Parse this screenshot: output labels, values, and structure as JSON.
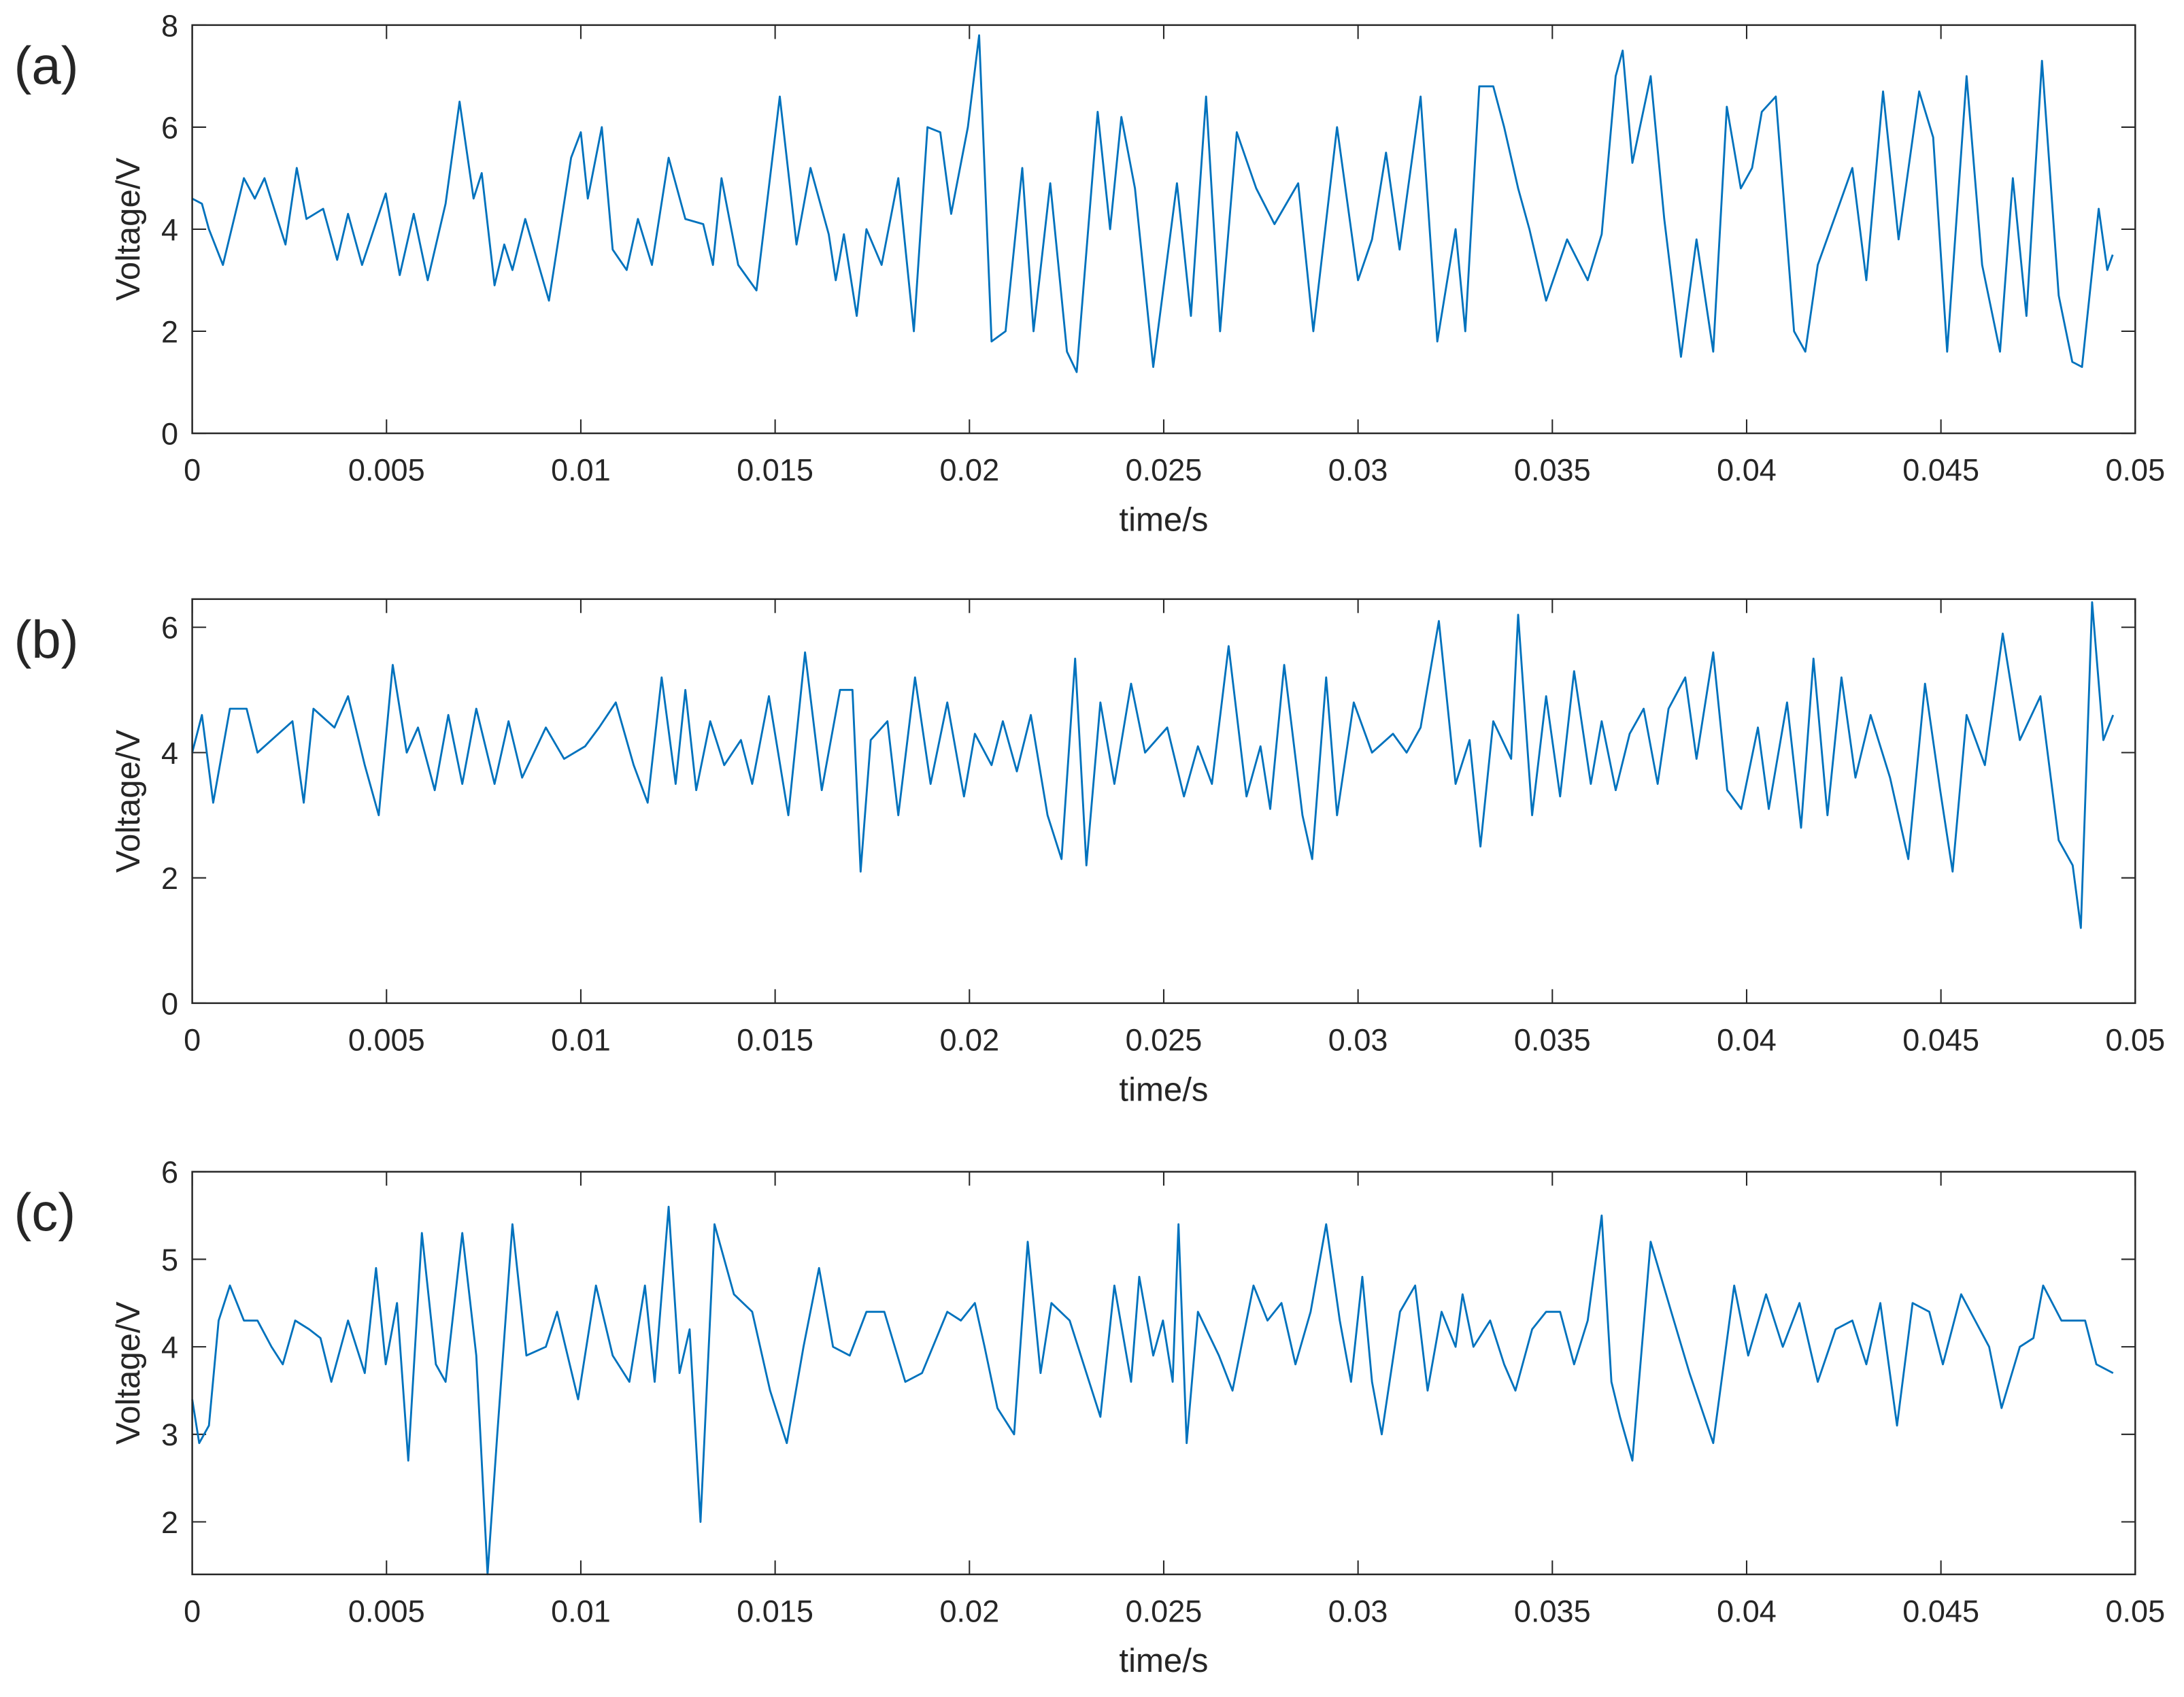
{
  "chart_data": [
    {
      "type": "line",
      "panel_label": "(a)",
      "ylabel": "Voltage/V",
      "xlabel": "time/s",
      "color": "#0072bd",
      "xlim": [
        0,
        0.05
      ],
      "ylim": [
        0,
        8
      ],
      "xticks": [
        0,
        0.005,
        0.01,
        0.015,
        0.02,
        0.025,
        0.03,
        0.035,
        0.04,
        0.045,
        0.05
      ],
      "yticks": [
        0,
        2,
        4,
        6,
        8
      ],
      "x": [
        0,
        0.00025,
        0.00043,
        0.00079,
        0.00133,
        0.00161,
        0.00186,
        0.0024,
        0.00269,
        0.00294,
        0.00337,
        0.00373,
        0.00401,
        0.00437,
        0.00498,
        0.00534,
        0.0057,
        0.00606,
        0.00652,
        0.00688,
        0.00724,
        0.00745,
        0.00778,
        0.00803,
        0.00824,
        0.00857,
        0.00918,
        0.00975,
        0.01,
        0.01018,
        0.01054,
        0.01082,
        0.01118,
        0.01147,
        0.01183,
        0.01226,
        0.01269,
        0.01315,
        0.0134,
        0.01362,
        0.01405,
        0.01452,
        0.01512,
        0.01555,
        0.01591,
        0.01638,
        0.01656,
        0.01677,
        0.0171,
        0.01735,
        0.01774,
        0.01817,
        0.01857,
        0.01892,
        0.01925,
        0.01953,
        0.01996,
        0.02025,
        0.02057,
        0.02093,
        0.02136,
        0.02165,
        0.02208,
        0.02251,
        0.02276,
        0.0233,
        0.02362,
        0.02391,
        0.02426,
        0.02473,
        0.02534,
        0.0257,
        0.02609,
        0.02645,
        0.02688,
        0.02738,
        0.02785,
        0.02846,
        0.02885,
        0.02946,
        0.03,
        0.03036,
        0.03072,
        0.03107,
        0.03161,
        0.03204,
        0.03251,
        0.03276,
        0.03312,
        0.03348,
        0.03376,
        0.03412,
        0.03441,
        0.03484,
        0.03538,
        0.03591,
        0.03627,
        0.03663,
        0.03681,
        0.03706,
        0.03753,
        0.03788,
        0.03831,
        0.03871,
        0.03914,
        0.03949,
        0.03985,
        0.04014,
        0.04039,
        0.04075,
        0.04122,
        0.04151,
        0.04183,
        0.0423,
        0.04272,
        0.04308,
        0.04351,
        0.04391,
        0.04444,
        0.0448,
        0.04516,
        0.04566,
        0.04606,
        0.04652,
        0.04685,
        0.0472,
        0.0476,
        0.04803,
        0.04838,
        0.04863,
        0.04906,
        0.04928,
        0.04942
      ],
      "values": [
        4.6,
        4.5,
        4.0,
        3.3,
        5.0,
        4.6,
        5.0,
        3.7,
        5.2,
        4.2,
        4.4,
        3.4,
        4.3,
        3.3,
        4.7,
        3.1,
        4.3,
        3.0,
        4.5,
        6.5,
        4.6,
        5.1,
        2.9,
        3.7,
        3.2,
        4.2,
        2.6,
        5.4,
        5.9,
        4.6,
        6.0,
        3.6,
        3.2,
        4.2,
        3.3,
        5.4,
        4.2,
        4.1,
        3.3,
        5.0,
        3.3,
        2.8,
        6.6,
        3.7,
        5.2,
        3.9,
        3.0,
        3.9,
        2.3,
        4.0,
        3.3,
        5.0,
        2.0,
        6.0,
        5.9,
        4.3,
        6.0,
        7.8,
        1.8,
        2.0,
        5.2,
        2.0,
        4.9,
        1.6,
        1.2,
        6.3,
        4.0,
        6.2,
        4.8,
        1.3,
        4.9,
        2.3,
        6.6,
        2.0,
        5.9,
        4.8,
        4.1,
        4.9,
        2.0,
        6.0,
        3.0,
        3.8,
        5.5,
        3.6,
        6.6,
        1.8,
        4.0,
        2.0,
        6.8,
        6.8,
        6.0,
        4.8,
        4.0,
        2.6,
        3.8,
        3.0,
        3.9,
        7.0,
        7.5,
        5.3,
        7.0,
        4.2,
        1.5,
        3.8,
        1.6,
        6.4,
        4.8,
        5.2,
        6.3,
        6.6,
        2.0,
        1.6,
        3.3,
        4.3,
        5.2,
        3.0,
        6.7,
        3.8,
        6.7,
        5.8,
        1.6,
        7.0,
        3.3,
        1.6,
        5.0,
        2.3,
        7.3,
        2.7,
        1.4,
        1.3,
        4.4,
        3.2,
        3.5
      ]
    },
    {
      "type": "line",
      "panel_label": "(b)",
      "ylabel": "Voltage/V",
      "xlabel": "time/s",
      "color": "#0072bd",
      "xlim": [
        0,
        0.05
      ],
      "ylim": [
        0,
        6.45
      ],
      "xticks": [
        0,
        0.005,
        0.01,
        0.015,
        0.02,
        0.025,
        0.03,
        0.035,
        0.04,
        0.045,
        0.05
      ],
      "yticks": [
        0,
        2,
        4,
        6
      ],
      "x": [
        0,
        0.00025,
        0.00054,
        0.00097,
        0.0014,
        0.00168,
        0.00222,
        0.00258,
        0.00287,
        0.00312,
        0.00366,
        0.00401,
        0.00444,
        0.0048,
        0.00516,
        0.00552,
        0.00581,
        0.00624,
        0.00659,
        0.00695,
        0.00731,
        0.00778,
        0.00814,
        0.00849,
        0.0091,
        0.00957,
        0.01011,
        0.01047,
        0.0109,
        0.01136,
        0.01172,
        0.01208,
        0.01244,
        0.01269,
        0.01297,
        0.01333,
        0.01369,
        0.01412,
        0.01441,
        0.01484,
        0.01534,
        0.01577,
        0.0162,
        0.01667,
        0.01699,
        0.0172,
        0.01746,
        0.01789,
        0.01817,
        0.0186,
        0.019,
        0.01943,
        0.01986,
        0.02014,
        0.02057,
        0.02086,
        0.02122,
        0.02158,
        0.02201,
        0.02237,
        0.02272,
        0.02301,
        0.02337,
        0.02373,
        0.02416,
        0.02452,
        0.02509,
        0.02552,
        0.02588,
        0.02624,
        0.02667,
        0.02713,
        0.02749,
        0.02774,
        0.0281,
        0.02857,
        0.02882,
        0.02918,
        0.02946,
        0.02989,
        0.03036,
        0.0309,
        0.03125,
        0.03161,
        0.03208,
        0.03251,
        0.03287,
        0.03315,
        0.03348,
        0.03394,
        0.03412,
        0.03448,
        0.03484,
        0.0352,
        0.03556,
        0.03599,
        0.03627,
        0.03663,
        0.03699,
        0.03735,
        0.03771,
        0.03799,
        0.03842,
        0.03871,
        0.03914,
        0.0395,
        0.03986,
        0.04029,
        0.04057,
        0.04104,
        0.0414,
        0.04172,
        0.04208,
        0.04244,
        0.0428,
        0.04319,
        0.04369,
        0.04416,
        0.04459,
        0.04498,
        0.0453,
        0.04566,
        0.04613,
        0.04659,
        0.04703,
        0.04756,
        0.04803,
        0.04839,
        0.0486,
        0.04889,
        0.04918,
        0.04943
      ],
      "values": [
        4.0,
        4.6,
        3.2,
        4.7,
        4.7,
        4.0,
        4.3,
        4.5,
        3.2,
        4.7,
        4.4,
        4.9,
        3.8,
        3.0,
        5.4,
        4.0,
        4.4,
        3.4,
        4.6,
        3.5,
        4.7,
        3.5,
        4.5,
        3.6,
        4.4,
        3.9,
        4.1,
        4.4,
        4.8,
        3.8,
        3.2,
        5.2,
        3.5,
        5.0,
        3.4,
        4.5,
        3.8,
        4.2,
        3.5,
        4.9,
        3.0,
        5.6,
        3.4,
        5.0,
        5.0,
        2.1,
        4.2,
        4.5,
        3.0,
        5.2,
        3.5,
        4.8,
        3.3,
        4.3,
        3.8,
        4.5,
        3.7,
        4.6,
        3.0,
        2.3,
        5.5,
        2.2,
        4.8,
        3.5,
        5.1,
        4.0,
        4.4,
        3.3,
        4.1,
        3.5,
        5.7,
        3.3,
        4.1,
        3.1,
        5.4,
        3.0,
        2.3,
        5.2,
        3.0,
        4.8,
        4.0,
        4.3,
        4.0,
        4.4,
        6.1,
        3.5,
        4.2,
        2.5,
        4.5,
        3.9,
        6.2,
        3.0,
        4.9,
        3.3,
        5.3,
        3.5,
        4.5,
        3.4,
        4.3,
        4.7,
        3.5,
        4.7,
        5.2,
        3.9,
        5.6,
        3.4,
        3.1,
        4.4,
        3.1,
        4.8,
        2.8,
        5.5,
        3.0,
        5.2,
        3.6,
        4.6,
        3.6,
        2.3,
        5.1,
        3.4,
        2.1,
        4.6,
        3.8,
        5.9,
        4.2,
        4.9,
        2.6,
        2.2,
        1.2,
        6.4,
        4.2,
        4.6
      ]
    },
    {
      "type": "line",
      "panel_label": "(c)",
      "ylabel": "Voltage/V",
      "xlabel": "time/s",
      "color": "#0072bd",
      "xlim": [
        0,
        0.05
      ],
      "ylim": [
        1.4,
        6
      ],
      "xticks": [
        0,
        0.005,
        0.01,
        0.015,
        0.02,
        0.025,
        0.03,
        0.035,
        0.04,
        0.045,
        0.05
      ],
      "yticks": [
        2,
        3,
        4,
        5,
        6
      ],
      "x": [
        0,
        0.00018,
        0.00043,
        0.00068,
        0.00097,
        0.00133,
        0.00168,
        0.00204,
        0.00233,
        0.00265,
        0.00301,
        0.0033,
        0.00358,
        0.00401,
        0.00444,
        0.00473,
        0.00498,
        0.00527,
        0.00556,
        0.00591,
        0.00627,
        0.00652,
        0.00695,
        0.00731,
        0.0076,
        0.00785,
        0.00824,
        0.0086,
        0.0091,
        0.00939,
        0.00993,
        0.01039,
        0.01082,
        0.01125,
        0.01165,
        0.0119,
        0.01226,
        0.01254,
        0.0128,
        0.01308,
        0.01344,
        0.01394,
        0.01441,
        0.01487,
        0.0153,
        0.01573,
        0.01613,
        0.01649,
        0.01692,
        0.01735,
        0.01781,
        0.01835,
        0.01878,
        0.01943,
        0.01978,
        0.02014,
        0.02039,
        0.02072,
        0.02115,
        0.0215,
        0.02183,
        0.02211,
        0.02258,
        0.02301,
        0.02337,
        0.02373,
        0.02416,
        0.02437,
        0.02473,
        0.02498,
        0.02523,
        0.02538,
        0.02559,
        0.02588,
        0.02642,
        0.02677,
        0.02731,
        0.02767,
        0.02803,
        0.02839,
        0.02878,
        0.02918,
        0.02953,
        0.02982,
        0.03011,
        0.03036,
        0.03061,
        0.03108,
        0.03147,
        0.03179,
        0.03215,
        0.03251,
        0.03269,
        0.03297,
        0.0334,
        0.03376,
        0.03405,
        0.03448,
        0.03484,
        0.0352,
        0.03556,
        0.03591,
        0.03627,
        0.03652,
        0.03674,
        0.03706,
        0.03753,
        0.03806,
        0.03853,
        0.03914,
        0.03968,
        0.04004,
        0.0405,
        0.04093,
        0.04136,
        0.04183,
        0.04229,
        0.04272,
        0.04308,
        0.04344,
        0.04387,
        0.04427,
        0.0447,
        0.04505,
        0.04552,
        0.04588,
        0.04624,
        0.04656,
        0.04703,
        0.04738,
        0.04763,
        0.0481,
        0.04871,
        0.049,
        0.04943
      ],
      "values": [
        3.4,
        2.9,
        3.1,
        4.3,
        4.7,
        4.3,
        4.3,
        4.0,
        3.8,
        4.3,
        4.2,
        4.1,
        3.6,
        4.3,
        3.7,
        4.9,
        3.8,
        4.5,
        2.7,
        5.3,
        3.8,
        3.6,
        5.3,
        3.9,
        1.4,
        3.0,
        5.4,
        3.9,
        4.0,
        4.4,
        3.4,
        4.7,
        3.9,
        3.6,
        4.7,
        3.6,
        5.6,
        3.7,
        4.2,
        2.0,
        5.4,
        4.6,
        4.4,
        3.5,
        2.9,
        4.0,
        4.9,
        4.0,
        3.9,
        4.4,
        4.4,
        3.6,
        3.7,
        4.4,
        4.3,
        4.5,
        4.0,
        3.3,
        3.0,
        5.2,
        3.7,
        4.5,
        4.3,
        3.7,
        3.2,
        4.7,
        3.6,
        4.8,
        3.9,
        4.3,
        3.6,
        5.4,
        2.9,
        4.4,
        3.9,
        3.5,
        4.7,
        4.3,
        4.5,
        3.8,
        4.4,
        5.4,
        4.3,
        3.6,
        4.8,
        3.6,
        3.0,
        4.4,
        4.7,
        3.5,
        4.4,
        4.0,
        4.6,
        4.0,
        4.3,
        3.8,
        3.5,
        4.2,
        4.4,
        4.4,
        3.8,
        4.3,
        5.5,
        3.6,
        3.2,
        2.7,
        5.2,
        4.4,
        3.7,
        2.9,
        4.7,
        3.9,
        4.6,
        4.0,
        4.5,
        3.6,
        4.2,
        4.3,
        3.8,
        4.5,
        3.1,
        4.5,
        4.4,
        3.8,
        4.6,
        4.3,
        4.0,
        3.3,
        4.0,
        4.1,
        4.7,
        4.3,
        4.3,
        3.8,
        3.7
      ]
    }
  ]
}
